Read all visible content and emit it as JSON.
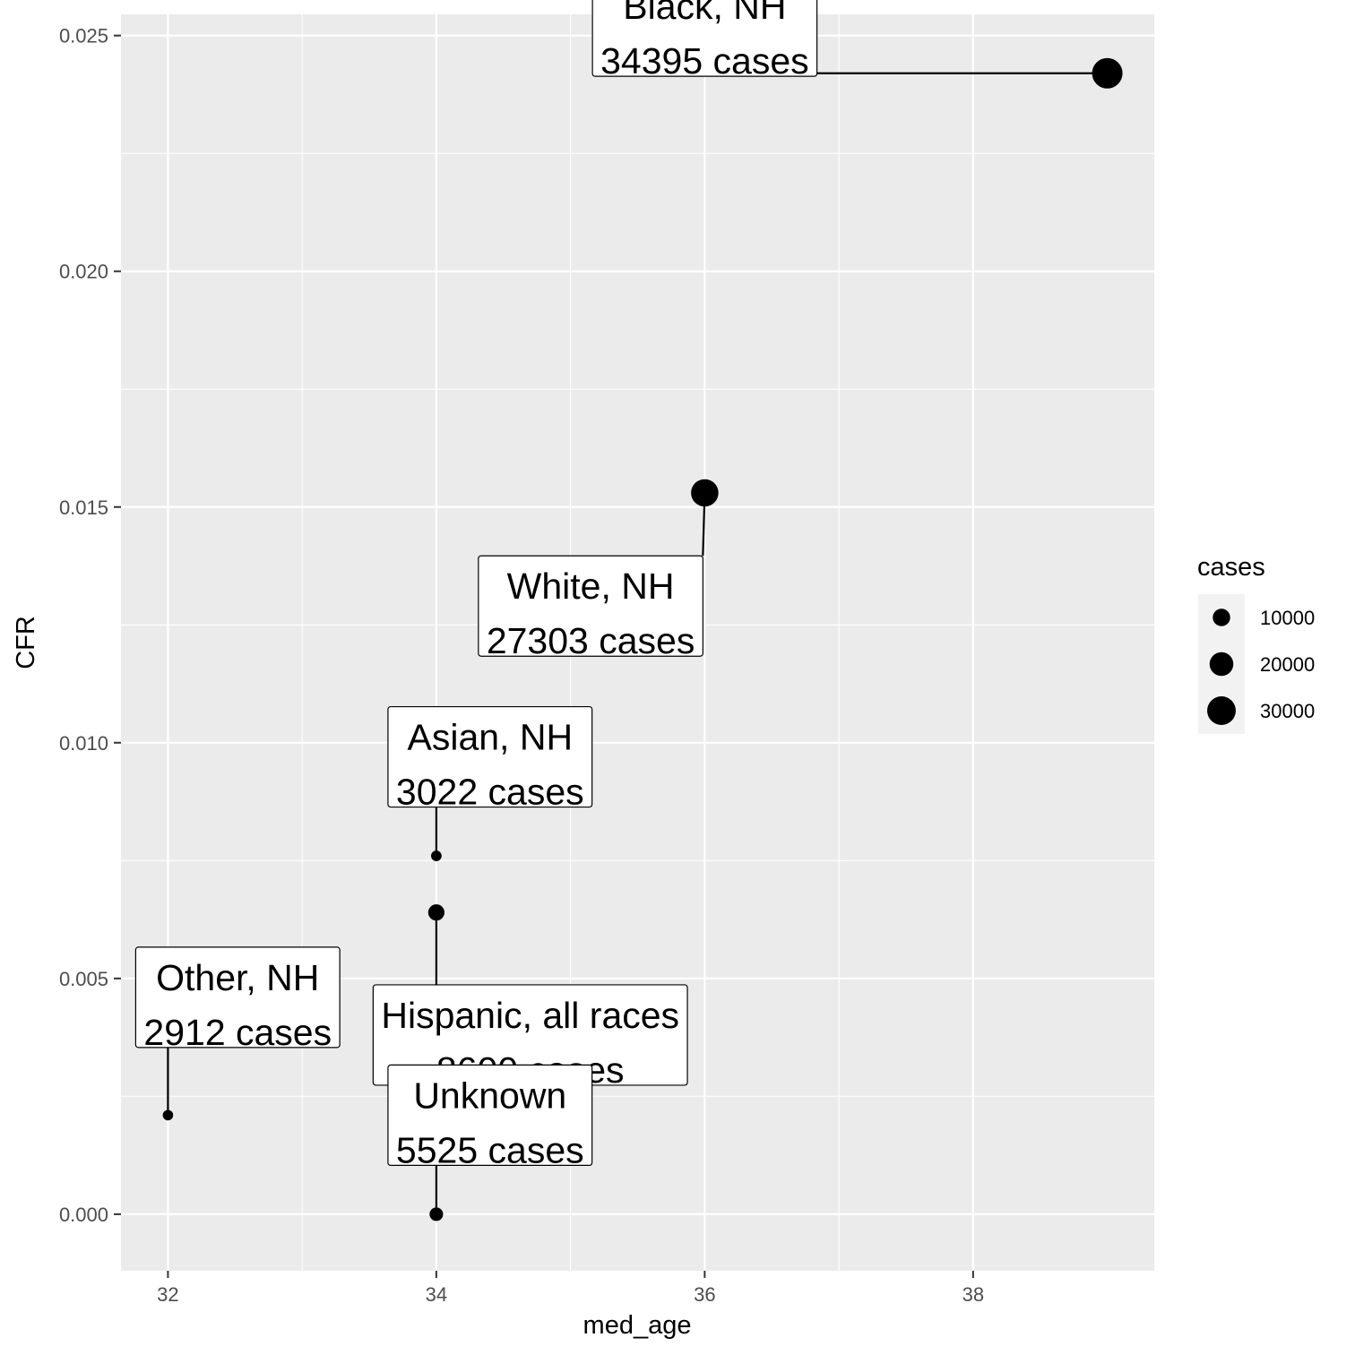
{
  "chart_data": {
    "type": "scatter",
    "xlabel": "med_age",
    "ylabel": "CFR",
    "xlim": [
      31.65,
      39.35
    ],
    "ylim": [
      -0.0012,
      0.02545
    ],
    "x_ticks": [
      32,
      34,
      36,
      38
    ],
    "y_ticks": [
      0.0,
      0.005,
      0.01,
      0.015,
      0.02,
      0.025
    ],
    "y_tick_labels": [
      "0.000",
      "0.005",
      "0.010",
      "0.015",
      "0.020",
      "0.025"
    ],
    "grid": true,
    "size_variable": "cases",
    "points": [
      {
        "group": "Black, NH",
        "med_age": 39,
        "CFR": 0.0242,
        "cases": 34395,
        "label_line1": "Black, NH",
        "label_line2": "34395 cases"
      },
      {
        "group": "White, NH",
        "med_age": 36,
        "CFR": 0.0153,
        "cases": 27303,
        "label_line1": "White, NH",
        "label_line2": "27303 cases"
      },
      {
        "group": "Asian, NH",
        "med_age": 34,
        "CFR": 0.0076,
        "cases": 3022,
        "label_line1": "Asian, NH",
        "label_line2": "3022 cases"
      },
      {
        "group": "Hispanic, all races",
        "med_age": 34,
        "CFR": 0.0064,
        "cases": 8600,
        "label_line1": "Hispanic, all races",
        "label_line2": "8600 cases"
      },
      {
        "group": "Other, NH",
        "med_age": 32,
        "CFR": 0.0021,
        "cases": 2912,
        "label_line1": "Other, NH",
        "label_line2": "2912 cases"
      },
      {
        "group": "Unknown",
        "med_age": 34,
        "CFR": 0.0,
        "cases": 5525,
        "label_line1": "Unknown",
        "label_line2": "5525 cases"
      }
    ],
    "legend": {
      "title": "cases",
      "position": "right",
      "entries": [
        {
          "label": "10000",
          "value": 10000
        },
        {
          "label": "20000",
          "value": 20000
        },
        {
          "label": "30000",
          "value": 30000
        }
      ]
    }
  }
}
